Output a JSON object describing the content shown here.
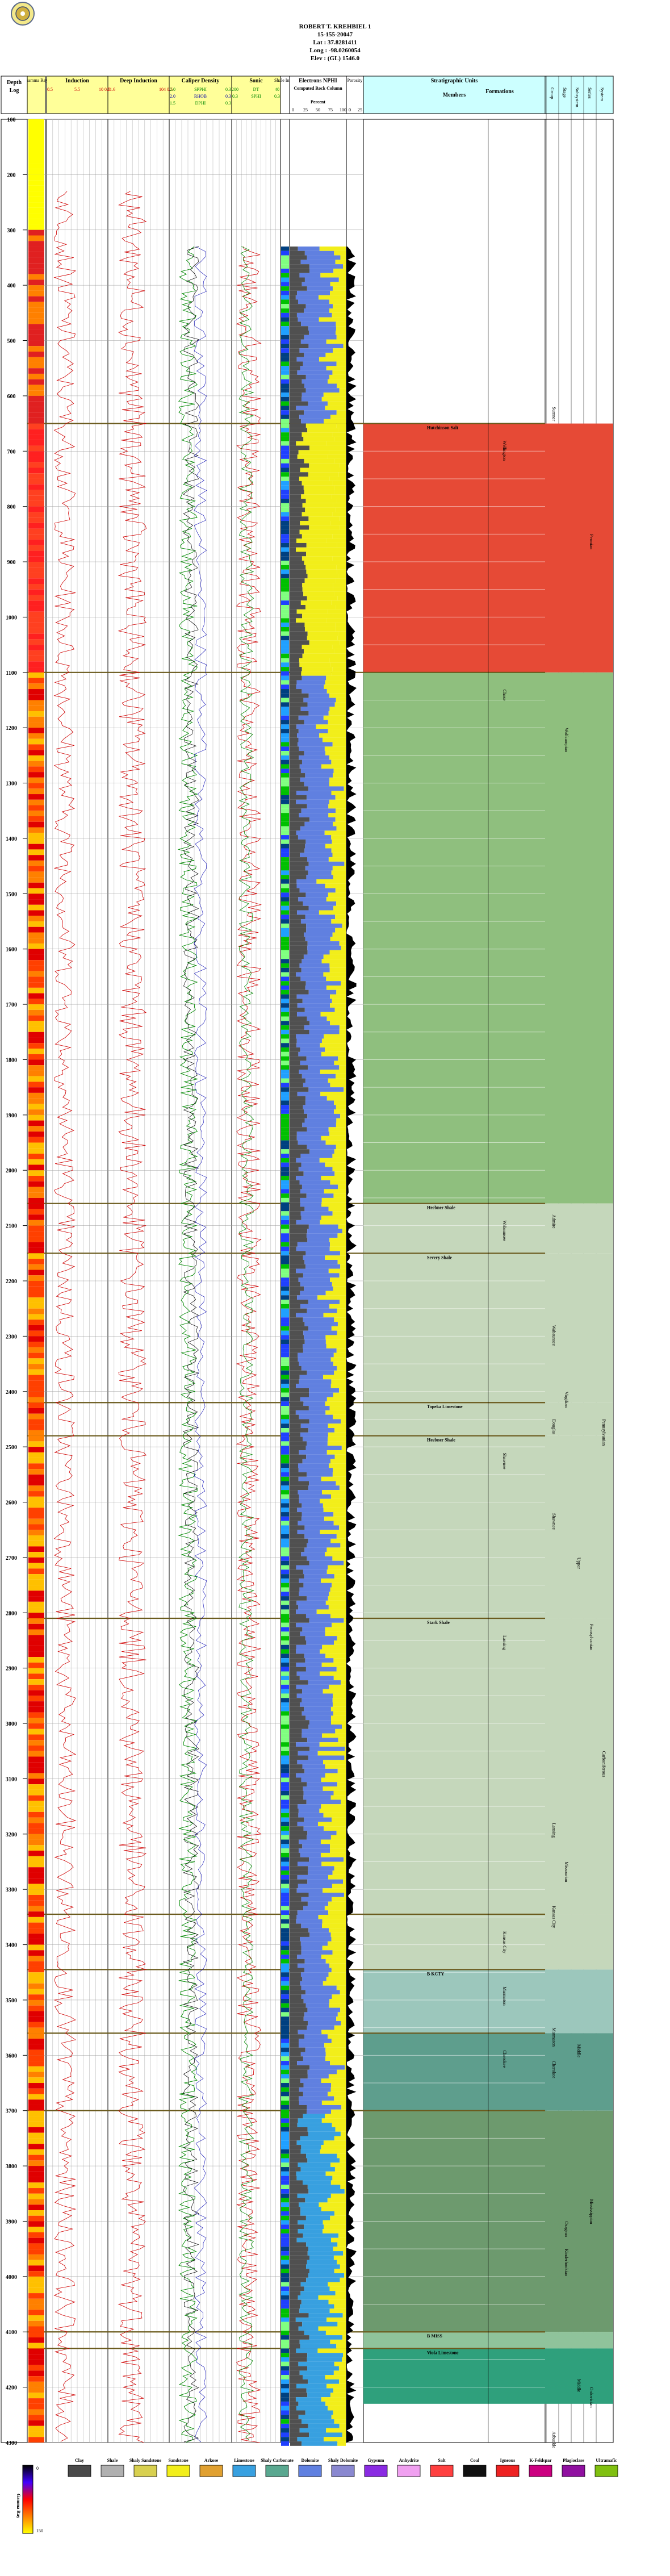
{
  "header": {
    "well_name": "ROBERT T. KREHBIEL 1",
    "api": "15-155-20047",
    "lat": "Lat : 37.8281411",
    "long": "Long : -98.0260054",
    "elev": "Elev : (GL) 1546.0"
  },
  "columns": {
    "depth": "Depth",
    "log": "Log",
    "gamma": "Gamma Ray",
    "resistivity": "Induction",
    "deep_induction": "Deep Induction",
    "sp_density": "Caliper Density",
    "sonic": "Sonic",
    "shale_index": "Shale Index",
    "nnrs": "Electrons NPHI",
    "computed_rock": "Computed Rock Column",
    "percent": "Percent",
    "porosity": "Porosity",
    "strat_title": "Stratigraphic Units",
    "members": "Members",
    "formations": "Formations",
    "hier": [
      "Group",
      "Stage",
      "Subsystem",
      "Series",
      "System"
    ]
  },
  "track_scales": {
    "resistivity": [
      "0.5",
      "5.5",
      "10 0.5"
    ],
    "deep_induction": [
      "21.6",
      "104 0.5"
    ],
    "sp": [
      "2.0",
      "SPPHI",
      "0.3"
    ],
    "sp2": [
      "2.0",
      "RHOB",
      "0.3"
    ],
    "sp3": [
      "1.5",
      "DPHI",
      "0.3"
    ],
    "sonic": [
      "200",
      "DT",
      "40"
    ],
    "sonic2": [
      "0.3",
      "SPHI",
      "0.3"
    ],
    "percent_ticks": [
      "0",
      "25",
      "50",
      "75",
      "100"
    ],
    "porosity_ticks": [
      "0",
      "25"
    ],
    "gamma_ticks": [
      "0",
      "150"
    ]
  },
  "depth_labels": [
    "100",
    "200",
    "300",
    "400",
    "500",
    "600",
    "700",
    "800",
    "900",
    "1000",
    "1100",
    "1200",
    "1300",
    "1400",
    "1500",
    "1600",
    "1700",
    "1800",
    "1900",
    "2000",
    "2100",
    "2200",
    "2300",
    "2400",
    "2500",
    "2600",
    "2700",
    "2800",
    "2900",
    "3000",
    "3100",
    "3200",
    "3300",
    "3400",
    "3500",
    "3600",
    "3700",
    "3800",
    "3900",
    "4000",
    "4100",
    "4200",
    "4300"
  ],
  "depth_range": [
    100,
    4300
  ],
  "intervals": [
    {
      "top": 650,
      "base": 1100,
      "color": "#e64a36",
      "member": "Hutchinson Salt",
      "formation": "Wellington",
      "series": "",
      "system": ""
    },
    {
      "top": 1100,
      "base": 2060,
      "color": "#8fbf7e",
      "member": "",
      "formation": "Chase",
      "series": "",
      "system": ""
    },
    {
      "top": 2060,
      "base": 2150,
      "color": "#c5d7bb",
      "member": "Heebner Shale",
      "formation": "Wabaunsee",
      "series": "",
      "system": ""
    },
    {
      "top": 2150,
      "base": 2420,
      "color": "#c5d7bb",
      "member": "Severy Shale",
      "formation": "",
      "series": "",
      "system": ""
    },
    {
      "top": 2420,
      "base": 2480,
      "color": "#c5d7bb",
      "member": "Topeka Limestone",
      "formation": "",
      "series": "",
      "system": ""
    },
    {
      "top": 2480,
      "base": 2810,
      "color": "#c5d7bb",
      "member": "Heebner Shale",
      "formation": "Shawnee",
      "series": "",
      "system": ""
    },
    {
      "top": 2810,
      "base": 3345,
      "color": "#c5d7bb",
      "member": "Stark Shale",
      "formation": "Lansing",
      "series": "",
      "system": ""
    },
    {
      "top": 3345,
      "base": 3445,
      "color": "#c5d7bb",
      "member": "",
      "formation": "Kansas City",
      "series": "",
      "system": ""
    },
    {
      "top": 3445,
      "base": 3560,
      "color": "#9cc7bc",
      "member": "B KCTY",
      "formation": "Marmaton",
      "series": "",
      "system": ""
    },
    {
      "top": 3560,
      "base": 3700,
      "color": "#5e9e8d",
      "member": "",
      "formation": "Cherokee",
      "series": "",
      "system": ""
    },
    {
      "top": 3700,
      "base": 4100,
      "color": "#6d9a6e",
      "member": "",
      "formation": "",
      "series": "",
      "system": ""
    },
    {
      "top": 4100,
      "base": 4130,
      "color": "#8fc39b",
      "member": "B MISS",
      "formation": "",
      "series": "",
      "system": ""
    },
    {
      "top": 4130,
      "base": 4230,
      "color": "#2fa07c",
      "member": "Viola Limestone",
      "formation": "",
      "series": "",
      "system": ""
    }
  ],
  "hier_labels": [
    {
      "text": "Sumner",
      "depth": 620,
      "col": 0
    },
    {
      "text": "Permian",
      "depth": 850,
      "col": 3
    },
    {
      "text": "Wolfcampian",
      "depth": 1200,
      "col": 1
    },
    {
      "text": "Admire",
      "depth": 2080,
      "col": 0
    },
    {
      "text": "Wabaunsee",
      "depth": 2280,
      "col": 0
    },
    {
      "text": "Virgilian",
      "depth": 2400,
      "col": 1
    },
    {
      "text": "Shawnee",
      "depth": 2620,
      "col": 0
    },
    {
      "text": "Douglas",
      "depth": 2450,
      "col": 0
    },
    {
      "text": "Upper",
      "depth": 2700,
      "col": 2
    },
    {
      "text": "Pennsylvanian",
      "depth": 2820,
      "col": 3
    },
    {
      "text": "Carboniferous",
      "depth": 3050,
      "col": 4
    },
    {
      "text": "Pennsylvanian",
      "depth": 2450,
      "col": 4
    },
    {
      "text": "Lansing",
      "depth": 3180,
      "col": 0
    },
    {
      "text": "Missourian",
      "depth": 3250,
      "col": 1
    },
    {
      "text": "Kansas City",
      "depth": 3330,
      "col": 0
    },
    {
      "text": "Marmaton",
      "depth": 3550,
      "col": 0
    },
    {
      "text": "Cherokee",
      "depth": 3610,
      "col": 0
    },
    {
      "text": "Middle",
      "depth": 3580,
      "col": 2
    },
    {
      "text": "Mississippian",
      "depth": 3860,
      "col": 3
    },
    {
      "text": "Osagean",
      "depth": 3900,
      "col": 1
    },
    {
      "text": "Kinderhookian",
      "depth": 3950,
      "col": 1
    },
    {
      "text": "Ordovician",
      "depth": 4200,
      "col": 3
    },
    {
      "text": "Middle",
      "depth": 4185,
      "col": 2
    },
    {
      "text": "Arbuckle",
      "depth": 4280,
      "col": 0
    }
  ],
  "legend": [
    {
      "label": "Clay",
      "color": "#4a4a4a"
    },
    {
      "label": "Shale",
      "color": "#b0b0b0"
    },
    {
      "label": "Shaly Sandstone",
      "color": "#d8d050"
    },
    {
      "label": "Sandstone",
      "color": "#f2ee1a"
    },
    {
      "label": "Arkose",
      "color": "#e0a030"
    },
    {
      "label": "Limestone",
      "color": "#38a0e0"
    },
    {
      "label": "Shaly Carbonate",
      "color": "#5aa890"
    },
    {
      "label": "Dolomite",
      "color": "#6080e0"
    },
    {
      "label": "Shaly Dolomite",
      "color": "#8a88d0"
    },
    {
      "label": "Gypsum",
      "color": "#8a2be2"
    },
    {
      "label": "Anhydrite",
      "color": "#f0a0f0"
    },
    {
      "label": "Salt",
      "color": "#ff4040"
    },
    {
      "label": "Coal",
      "color": "#101010"
    },
    {
      "label": "Igneous",
      "color": "#ee2222"
    },
    {
      "label": "K-Feldspar",
      "color": "#cc0080"
    },
    {
      "label": "Plagioclase",
      "color": "#9010a0"
    },
    {
      "label": "Ultramafic",
      "color": "#80c010"
    }
  ],
  "colors": {
    "border": "#000000",
    "gamma_bar": "#e00000",
    "resistivity": "#d00000",
    "density": "#008800",
    "sonic": "#a000a0",
    "neutron": "#0000b0",
    "separator": "#6b5b1e"
  }
}
